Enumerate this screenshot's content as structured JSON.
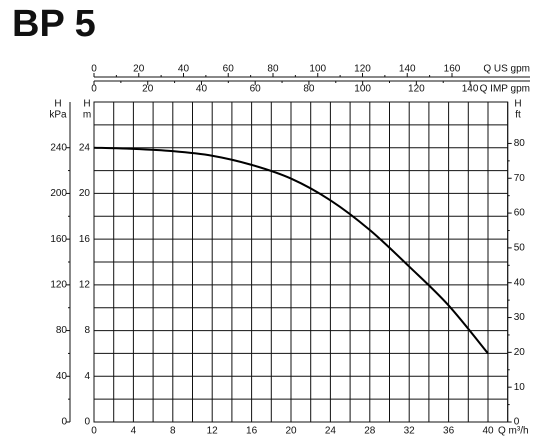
{
  "chart_data": {
    "type": "line",
    "title": "BP 5",
    "x": [
      0,
      4,
      8,
      12,
      16,
      20,
      24,
      28,
      32,
      36,
      40
    ],
    "values": [
      24,
      23.9,
      23.7,
      23.3,
      22.5,
      21.3,
      19.4,
      16.8,
      13.6,
      10.2,
      6
    ],
    "color": "#000000",
    "xlabel": "Q m³/h",
    "xlim": [
      0,
      42
    ],
    "xticks": [
      0,
      4,
      8,
      12,
      16,
      20,
      24,
      28,
      32,
      36,
      40
    ],
    "xminor": 2,
    "ylabel": [
      "H",
      "m"
    ],
    "ylim": [
      0,
      28
    ],
    "yticks": [
      0,
      4,
      8,
      12,
      16,
      20,
      24
    ],
    "yminor": 2,
    "kpa_axis": {
      "label": [
        "H",
        "kPa"
      ],
      "lim": [
        0,
        280
      ],
      "ticks": [
        0,
        40,
        80,
        120,
        160,
        200,
        240
      ]
    },
    "ft_axis": {
      "label": [
        "H",
        "ft"
      ],
      "lim": [
        0,
        91.9
      ],
      "ticks": [
        0,
        10,
        20,
        30,
        40,
        50,
        60,
        70,
        80
      ]
    },
    "usgpm_axis": {
      "label": "Q US gpm",
      "lim": [
        0,
        184.9
      ],
      "ticks": [
        0,
        20,
        40,
        60,
        80,
        100,
        120,
        140,
        160
      ]
    },
    "impgpm_axis": {
      "label": "Q IMP gpm",
      "lim": [
        0,
        154
      ],
      "ticks": [
        0,
        20,
        40,
        60,
        80,
        100,
        120,
        140
      ]
    },
    "grid": true
  }
}
